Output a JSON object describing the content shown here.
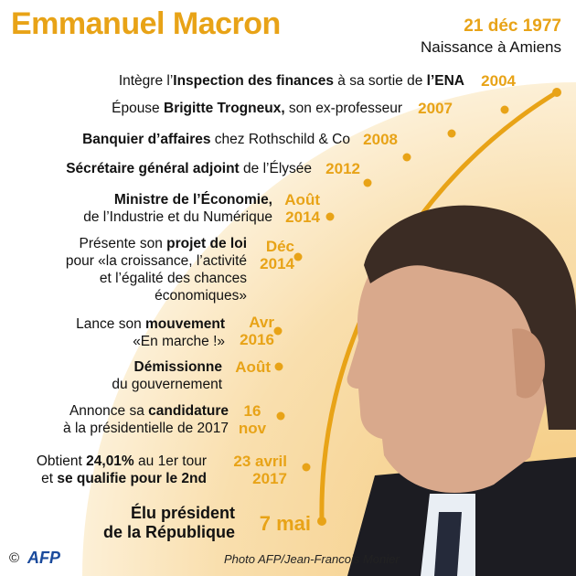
{
  "header": {
    "title": "Emmanuel Macron"
  },
  "birth": {
    "date": "21 déc 1977",
    "place": "Naissance à Amiens"
  },
  "events": [
    {
      "date": "2004",
      "lines": [
        [
          [
            "Intègre l’",
            false
          ],
          [
            "Inspection des finances",
            true
          ],
          [
            " à sa sortie de ",
            false
          ],
          [
            "l’ENA",
            true
          ]
        ]
      ]
    },
    {
      "date": "2007",
      "lines": [
        [
          [
            "Épouse ",
            false
          ],
          [
            "Brigitte Trogneux,",
            true
          ],
          [
            " son ex-professeur",
            false
          ]
        ]
      ]
    },
    {
      "date": "2008",
      "lines": [
        [
          [
            "Banquier d’affaires",
            true
          ],
          [
            " chez Rothschild & Co",
            false
          ]
        ]
      ]
    },
    {
      "date": "2012",
      "lines": [
        [
          [
            "Sécrétaire général adjoint",
            true
          ],
          [
            " de l’Élysée",
            false
          ]
        ]
      ]
    },
    {
      "date": "Août 2014",
      "lines": [
        [
          [
            "Ministre de l’Économie,",
            true
          ]
        ],
        [
          [
            "de l’Industrie et du Numérique",
            false
          ]
        ]
      ]
    },
    {
      "date": "Déc 2014",
      "lines": [
        [
          [
            "Présente son ",
            false
          ],
          [
            "projet de loi",
            true
          ]
        ],
        [
          [
            "pour «la croissance, l’activité",
            false
          ]
        ],
        [
          [
            "et l’égalité des chances",
            false
          ]
        ],
        [
          [
            "économiques»",
            false
          ]
        ]
      ]
    },
    {
      "date": "Avr 2016",
      "lines": [
        [
          [
            "Lance son ",
            false
          ],
          [
            "mouvement",
            true
          ]
        ],
        [
          [
            "«En marche !»",
            false
          ]
        ]
      ]
    },
    {
      "date": "Août",
      "lines": [
        [
          [
            "Démissionne",
            true
          ]
        ],
        [
          [
            "du gouvernement",
            false
          ]
        ]
      ]
    },
    {
      "date": "16 nov",
      "lines": [
        [
          [
            "Annonce sa ",
            false
          ],
          [
            "candidature",
            true
          ]
        ],
        [
          [
            "à la présidentielle de 2017",
            false
          ]
        ]
      ]
    },
    {
      "date": "23 avril 2017",
      "lines": [
        [
          [
            "Obtient ",
            false
          ],
          [
            "24,01%",
            true
          ],
          [
            " au 1er tour",
            false
          ]
        ],
        [
          [
            "et ",
            false
          ],
          [
            "se qualifie pour le 2nd",
            true
          ]
        ]
      ]
    },
    {
      "date": "7 mai",
      "lines": [
        [
          [
            "Élu président",
            true
          ]
        ],
        [
          [
            "de la République",
            true
          ]
        ]
      ]
    }
  ],
  "footer": {
    "copyright": "©",
    "agency": "AFP",
    "credit": "Photo AFP/Jean-Francois Monier"
  },
  "colors": {
    "accent": "#e8a317",
    "text": "#111111",
    "afp": "#1a4a9c"
  }
}
